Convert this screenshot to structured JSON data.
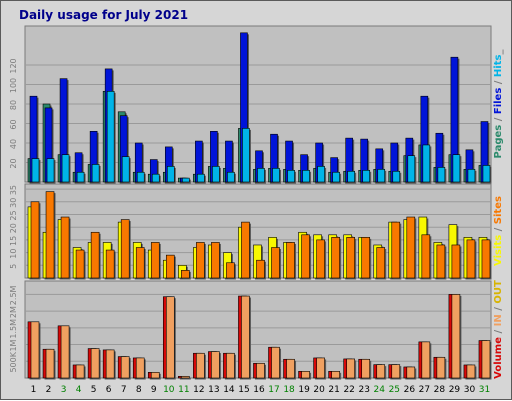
{
  "colors": {
    "background": "#d6d6d6",
    "panel": "#c0c0c0",
    "gridline": "#9a9a9a",
    "hits": "#00b4e8",
    "files": "#0014d8",
    "pages": "#2c8a6c",
    "visits": "#f8f800",
    "sites": "#f87800",
    "kbin": "#f0a060",
    "kbout": "#e83030",
    "kbytes": "#d80808",
    "title": "#00008b",
    "weekday_label": "#000000",
    "weekend_label": "#008000"
  },
  "chart_data": {
    "type": "bar",
    "title": "Daily usage for July 2021",
    "categories": [
      "1",
      "2",
      "3",
      "4",
      "5",
      "6",
      "7",
      "8",
      "9",
      "10",
      "11",
      "12",
      "13",
      "14",
      "15",
      "16",
      "17",
      "18",
      "19",
      "20",
      "21",
      "22",
      "23",
      "24",
      "25",
      "26",
      "27",
      "28",
      "29",
      "30",
      "31"
    ],
    "weekend_days": [
      "3",
      "4",
      "10",
      "11",
      "17",
      "18",
      "24",
      "25",
      "31"
    ],
    "panels": [
      {
        "name": "requests",
        "ylim": [
          0,
          160
        ],
        "yticks": [
          "20",
          "40",
          "60",
          "80",
          "100",
          "120"
        ],
        "side_label": [
          "Pages",
          " / ",
          "Files",
          " / ",
          "Hits",
          "_"
        ],
        "side_label_colors": [
          "#2c8a6c",
          "#7c7c7c",
          "#0014d8",
          "#7c7c7c",
          "#00b4e8",
          "#7c7c7c"
        ],
        "series": [
          {
            "name": "Pages",
            "color": "#2c8a6c",
            "values": [
              24,
              80,
              28,
              10,
              18,
              93,
              72,
              10,
              8,
              10,
              4,
              8,
              16,
              14,
              55,
              13,
              14,
              13,
              12,
              14,
              10,
              11,
              12,
              13,
              11,
              27,
              38,
              15,
              28,
              13,
              17
            ]
          },
          {
            "name": "Files",
            "color": "#0014d8",
            "values": [
              88,
              76,
              106,
              30,
              52,
              116,
              68,
              40,
              23,
              36,
              4,
              42,
              52,
              42,
              153,
              32,
              49,
              42,
              28,
              40,
              25,
              45,
              44,
              34,
              40,
              45,
              88,
              50,
              128,
              33,
              62
            ]
          },
          {
            "name": "Hits",
            "color": "#00b4e8",
            "values": [
              24,
              24,
              28,
              10,
              18,
              93,
              26,
              10,
              8,
              16,
              4,
              8,
              16,
              10,
              55,
              14,
              14,
              12,
              12,
              16,
              10,
              11,
              12,
              13,
              11,
              27,
              38,
              15,
              28,
              13,
              17
            ]
          }
        ]
      },
      {
        "name": "visitors",
        "ylim": [
          0,
          37
        ],
        "yticks": [
          "5",
          "10",
          "15",
          "20",
          "25",
          "30",
          "35"
        ],
        "side_label": [
          "Visits",
          " / ",
          "Sites"
        ],
        "side_label_colors": [
          "#f8f800",
          "#7c7c7c",
          "#f87800"
        ],
        "series": [
          {
            "name": "Visits",
            "color": "#f8f800",
            "values": [
              28,
              18,
              23,
              12,
              14,
              14,
              22,
              14,
              11,
              7,
              5,
              12,
              13,
              10,
              20,
              13,
              16,
              14,
              18,
              17,
              17,
              17,
              16,
              13,
              22,
              23,
              24,
              14,
              21,
              16,
              16
            ]
          },
          {
            "name": "Sites",
            "color": "#f87800",
            "values": [
              30,
              34,
              24,
              11,
              18,
              11,
              23,
              12,
              14,
              9,
              3,
              14,
              14,
              6,
              22,
              7,
              12,
              14,
              17,
              15,
              16,
              16,
              16,
              12,
              22,
              24,
              17,
              13,
              13,
              15,
              15
            ]
          }
        ]
      },
      {
        "name": "volume",
        "ylim": [
          0,
          2900
        ],
        "yticks": [
          "500K",
          "1M",
          "1.5M",
          "2M",
          "2.5M"
        ],
        "side_label": [
          "Volume",
          " / ",
          "IN",
          " / ",
          "OUT"
        ],
        "side_label_colors": [
          "#d80808",
          "#7c7c7c",
          "#f0a060",
          "#7c7c7c",
          "#d8b400"
        ],
        "series": [
          {
            "name": "Volume",
            "color": "#d80808",
            "values": [
              1680,
              860,
              1560,
              390,
              880,
              840,
              640,
              600,
              170,
              2430,
              50,
              740,
              790,
              740,
              2450,
              440,
              920,
              560,
              200,
              600,
              200,
              570,
              560,
              400,
              400,
              330,
              1080,
              620,
              2500,
              390,
              1120
            ]
          },
          {
            "name": "IN",
            "color": "#f0a060",
            "values": [
              1680,
              860,
              1560,
              390,
              880,
              840,
              640,
              600,
              170,
              2430,
              50,
              740,
              790,
              740,
              2450,
              440,
              920,
              560,
              200,
              600,
              200,
              570,
              560,
              400,
              400,
              330,
              1080,
              620,
              2500,
              390,
              1120
            ]
          }
        ]
      }
    ]
  }
}
